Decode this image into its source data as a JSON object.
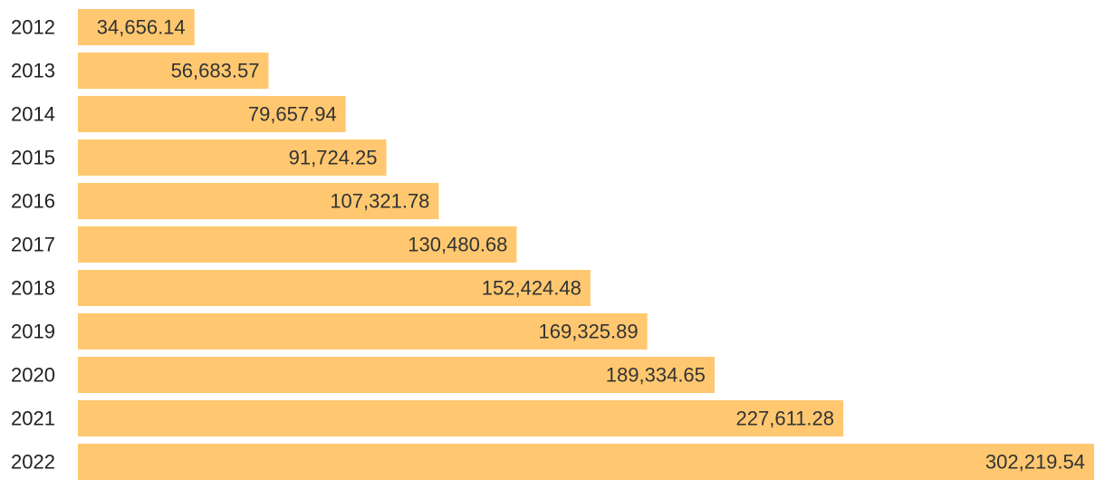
{
  "chart_data": {
    "type": "bar",
    "orientation": "horizontal",
    "title": "",
    "xlabel": "",
    "ylabel": "",
    "categories": [
      "2012",
      "2013",
      "2014",
      "2015",
      "2016",
      "2017",
      "2018",
      "2019",
      "2020",
      "2021",
      "2022"
    ],
    "values": [
      34656.14,
      56683.57,
      79657.94,
      91724.25,
      107321.78,
      130480.68,
      152424.48,
      169325.89,
      189334.65,
      227611.28,
      302219.54
    ],
    "value_labels": [
      "34,656.14",
      "56,683.57",
      "79,657.94",
      "91,724.25",
      "107,321.78",
      "130,480.68",
      "152,424.48",
      "169,325.89",
      "189,334.65",
      "227,611.28",
      "302,219.54"
    ],
    "xlim": [
      0,
      302219.54
    ],
    "grid": false,
    "legend": "none",
    "bar_color": "#ffc870",
    "label_color": "#222222",
    "value_label_color": "#333333"
  }
}
